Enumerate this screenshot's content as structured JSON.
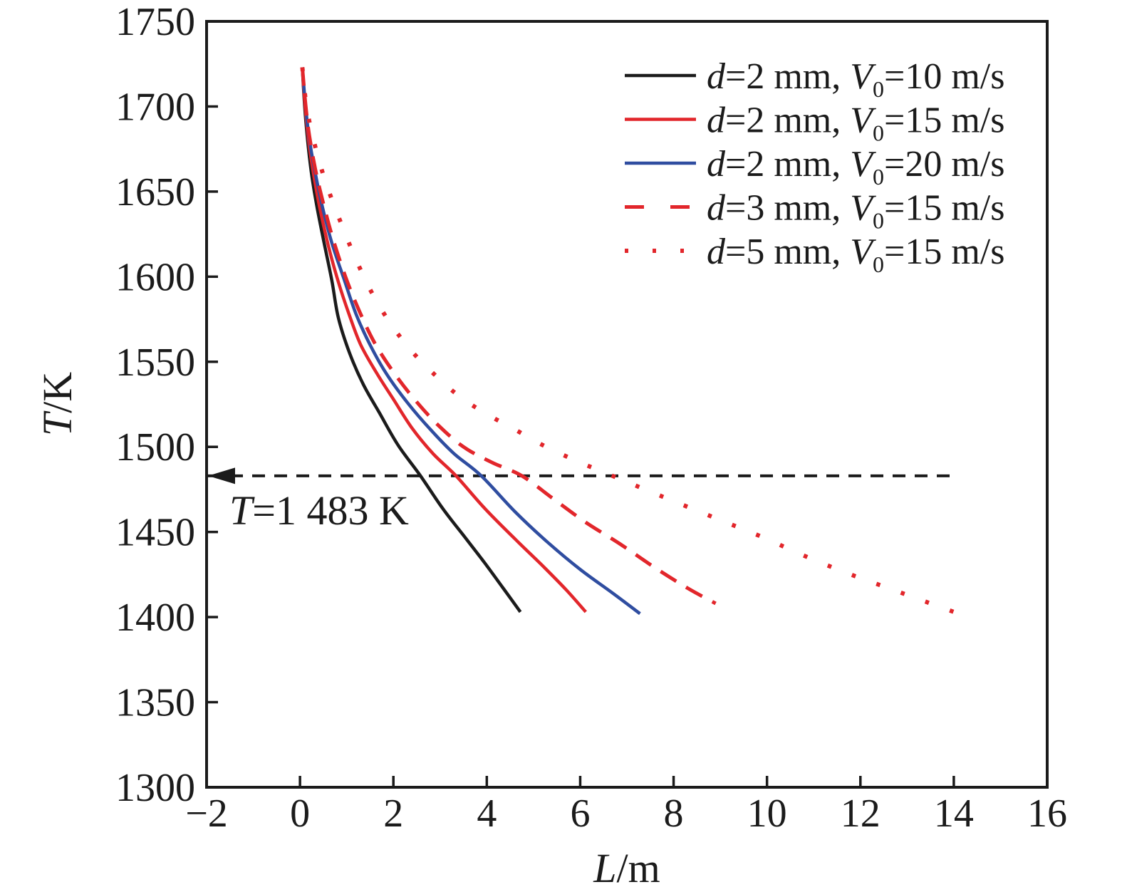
{
  "chart_data": {
    "type": "line",
    "title": "",
    "xlabel": "L/m",
    "ylabel": "T/K",
    "xlim": [
      -2,
      16
    ],
    "ylim": [
      1300,
      1750
    ],
    "x_ticks": [
      -2,
      0,
      2,
      4,
      6,
      8,
      10,
      12,
      14,
      16
    ],
    "x_tick_labels": [
      "−2",
      "0",
      "2",
      "4",
      "6",
      "8",
      "10",
      "12",
      "14",
      "16"
    ],
    "y_ticks": [
      1300,
      1350,
      1400,
      1450,
      1500,
      1550,
      1600,
      1650,
      1700,
      1750
    ],
    "y_tick_labels": [
      "1300",
      "1350",
      "1400",
      "1450",
      "1500",
      "1550",
      "1600",
      "1650",
      "1700",
      "1750"
    ],
    "grid": false,
    "frame": "full-box",
    "legend_position": "top-right-inside",
    "series": [
      {
        "name": "d=2 mm, V₀=10 m/s",
        "color": "#1b1b1b",
        "style": "solid",
        "points": [
          [
            0.05,
            1723
          ],
          [
            0.1,
            1700
          ],
          [
            0.16,
            1681
          ],
          [
            0.24,
            1662
          ],
          [
            0.35,
            1643
          ],
          [
            0.5,
            1622
          ],
          [
            0.68,
            1598
          ],
          [
            0.82,
            1576
          ],
          [
            1.05,
            1556
          ],
          [
            1.35,
            1537
          ],
          [
            1.7,
            1520
          ],
          [
            2.1,
            1501
          ],
          [
            2.58,
            1483
          ],
          [
            3.05,
            1464
          ],
          [
            3.5,
            1448
          ],
          [
            3.95,
            1432
          ],
          [
            4.35,
            1417
          ],
          [
            4.72,
            1403
          ]
        ]
      },
      {
        "name": "d=2 mm, V₀=15 m/s",
        "color": "#e2262b",
        "style": "solid",
        "points": [
          [
            0.05,
            1723
          ],
          [
            0.11,
            1700
          ],
          [
            0.18,
            1681
          ],
          [
            0.28,
            1662
          ],
          [
            0.42,
            1641
          ],
          [
            0.6,
            1619
          ],
          [
            0.82,
            1597
          ],
          [
            1.05,
            1578
          ],
          [
            1.3,
            1560
          ],
          [
            1.65,
            1543
          ],
          [
            2.0,
            1528
          ],
          [
            2.4,
            1511
          ],
          [
            2.85,
            1496
          ],
          [
            3.34,
            1483
          ],
          [
            3.95,
            1464
          ],
          [
            4.6,
            1446
          ],
          [
            5.2,
            1430
          ],
          [
            5.7,
            1416
          ],
          [
            6.12,
            1403
          ]
        ]
      },
      {
        "name": "d=2 mm, V₀=20 m/s",
        "color": "#2f4da0",
        "style": "solid",
        "points": [
          [
            0.05,
            1723
          ],
          [
            0.12,
            1700
          ],
          [
            0.2,
            1681
          ],
          [
            0.32,
            1662
          ],
          [
            0.48,
            1641
          ],
          [
            0.68,
            1620
          ],
          [
            0.95,
            1598
          ],
          [
            1.2,
            1578
          ],
          [
            1.5,
            1560
          ],
          [
            1.85,
            1543
          ],
          [
            2.3,
            1526
          ],
          [
            2.8,
            1510
          ],
          [
            3.3,
            1496
          ],
          [
            3.88,
            1483
          ],
          [
            4.6,
            1462
          ],
          [
            5.3,
            1444
          ],
          [
            6.0,
            1428
          ],
          [
            6.7,
            1414
          ],
          [
            7.28,
            1402
          ]
        ]
      },
      {
        "name": "d=3 mm, V₀=15 m/s",
        "color": "#e2262b",
        "style": "dashed",
        "points": [
          [
            0.05,
            1723
          ],
          [
            0.12,
            1701
          ],
          [
            0.2,
            1683
          ],
          [
            0.33,
            1663
          ],
          [
            0.5,
            1643
          ],
          [
            0.72,
            1621
          ],
          [
            1.0,
            1598
          ],
          [
            1.3,
            1578
          ],
          [
            1.6,
            1561
          ],
          [
            2.0,
            1544
          ],
          [
            2.45,
            1528
          ],
          [
            2.95,
            1513
          ],
          [
            3.5,
            1500
          ],
          [
            4.1,
            1491
          ],
          [
            4.75,
            1483
          ],
          [
            5.4,
            1470
          ],
          [
            6.1,
            1456
          ],
          [
            6.85,
            1443
          ],
          [
            7.6,
            1429
          ],
          [
            8.3,
            1417
          ],
          [
            8.9,
            1408
          ]
        ]
      },
      {
        "name": "d=5 mm, V₀=15 m/s",
        "color": "#e2262b",
        "style": "dotted",
        "points": [
          [
            0.05,
            1723
          ],
          [
            0.13,
            1702
          ],
          [
            0.25,
            1685
          ],
          [
            0.42,
            1667
          ],
          [
            0.62,
            1650
          ],
          [
            0.9,
            1630
          ],
          [
            1.2,
            1610
          ],
          [
            1.55,
            1590
          ],
          [
            1.95,
            1572
          ],
          [
            2.4,
            1556
          ],
          [
            2.9,
            1542
          ],
          [
            3.4,
            1530
          ],
          [
            3.95,
            1520
          ],
          [
            4.55,
            1511
          ],
          [
            5.2,
            1501
          ],
          [
            5.9,
            1492
          ],
          [
            6.6,
            1484
          ],
          [
            7.3,
            1476
          ],
          [
            8.1,
            1467
          ],
          [
            9.0,
            1457
          ],
          [
            9.9,
            1447
          ],
          [
            10.8,
            1436
          ],
          [
            11.7,
            1426
          ],
          [
            12.6,
            1417
          ],
          [
            13.4,
            1409
          ],
          [
            14.2,
            1401
          ]
        ]
      }
    ],
    "annotation": {
      "label": "T=1 483 K",
      "temperature_K": 1483,
      "line_style": "dashed",
      "color": "#1b1b1b",
      "x_start_m": -2,
      "x_end_m": 14.05,
      "arrow_direction": "left"
    }
  },
  "colors": {
    "ink": "#1b1b1b",
    "red": "#e2262b",
    "blue": "#2f4da0",
    "background": "#ffffff"
  }
}
